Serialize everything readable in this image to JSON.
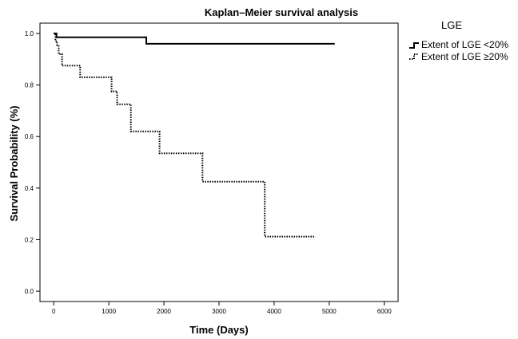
{
  "chart_data": {
    "type": "line",
    "title": "Kaplan–Meier survival analysis",
    "xlabel": "Time (Days)",
    "ylabel": "Survival Probability (%)",
    "xlim": [
      -250,
      6250
    ],
    "ylim": [
      -0.04,
      1.04
    ],
    "x_ticks": [
      0,
      1000,
      2000,
      3000,
      4000,
      5000,
      6000
    ],
    "x_tick_labels": [
      "0",
      "1000",
      "2000",
      "3000",
      "4000",
      "5000",
      "6000"
    ],
    "y_ticks": [
      0.0,
      0.2,
      0.4,
      0.6,
      0.8,
      1.0
    ],
    "y_tick_labels": [
      "0.0",
      "0.2",
      "0.4",
      "0.6",
      "0.8",
      "1.0"
    ],
    "grid": false,
    "legend": {
      "title": "LGE",
      "position": "right",
      "entries": [
        "Extent of LGE  <20%",
        "Extent of LGE ≥20%"
      ]
    },
    "series": [
      {
        "name": "Extent of LGE  <20%",
        "style": "solid",
        "x": [
          0,
          50,
          50,
          1680,
          1680,
          5100
        ],
        "y": [
          1.0,
          1.0,
          0.985,
          0.985,
          0.96,
          0.96
        ]
      },
      {
        "name": "Extent of LGE ≥20%",
        "style": "dotted",
        "x": [
          0,
          30,
          30,
          60,
          60,
          90,
          90,
          150,
          150,
          480,
          480,
          1050,
          1050,
          1150,
          1150,
          1400,
          1400,
          1920,
          1920,
          2700,
          2700,
          3830,
          3830,
          4750
        ],
        "y": [
          1.0,
          1.0,
          0.97,
          0.97,
          0.955,
          0.955,
          0.92,
          0.92,
          0.875,
          0.875,
          0.83,
          0.83,
          0.775,
          0.775,
          0.725,
          0.725,
          0.62,
          0.62,
          0.535,
          0.535,
          0.425,
          0.425,
          0.212,
          0.212
        ]
      }
    ]
  }
}
